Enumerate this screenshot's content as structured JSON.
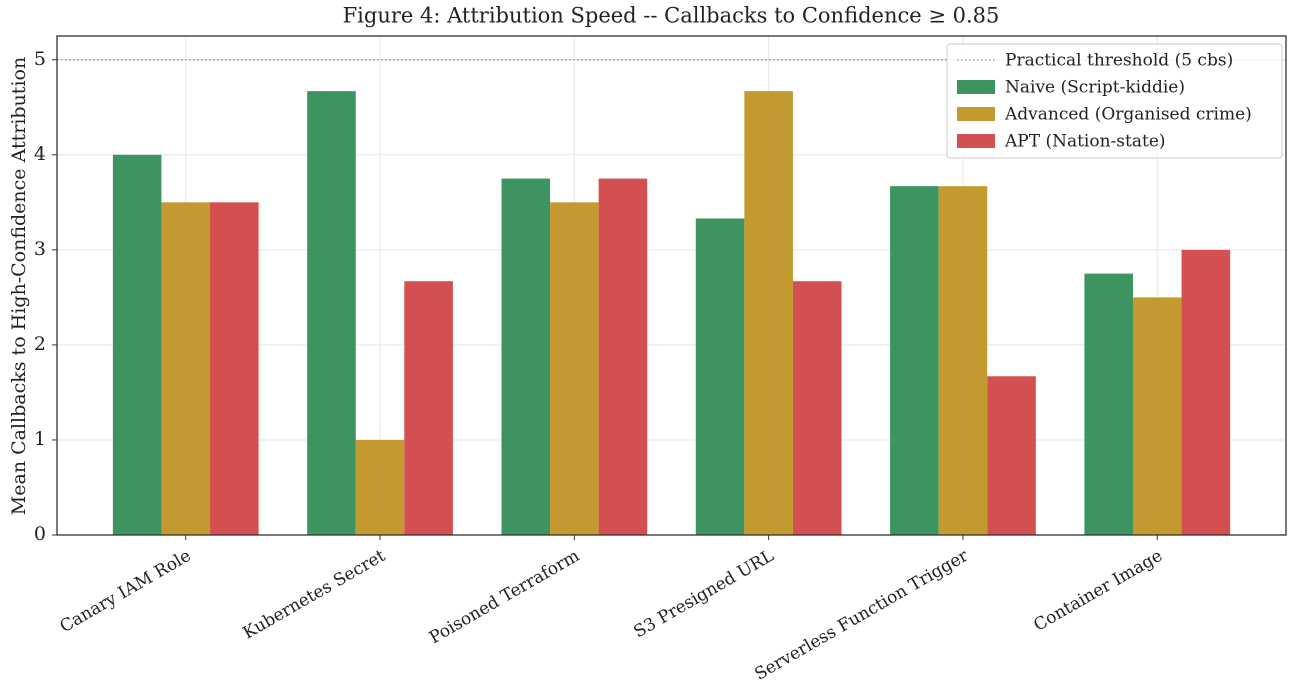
{
  "chart_data": {
    "type": "bar",
    "title": "Figure 4: Attribution Speed -- Callbacks to Confidence ≥ 0.85",
    "ylabel": "Mean Callbacks to High-Confidence Attribution",
    "categories": [
      "Canary IAM Role",
      "Kubernetes Secret",
      "Poisoned Terraform",
      "S3 Presigned URL",
      "Serverless Function Trigger",
      "Container Image"
    ],
    "series": [
      {
        "name": "Naive (Script-kiddie)",
        "color": "#3d9460",
        "values": [
          4.0,
          4.67,
          3.75,
          3.33,
          3.67,
          2.75
        ]
      },
      {
        "name": "Advanced (Organised crime)",
        "color": "#c39a30",
        "values": [
          3.5,
          1.0,
          3.5,
          4.67,
          3.67,
          2.5
        ]
      },
      {
        "name": "APT (Nation-state)",
        "color": "#d45050",
        "values": [
          3.5,
          2.67,
          3.75,
          2.67,
          1.67,
          3.0
        ]
      }
    ],
    "threshold": {
      "value": 5,
      "label": "Practical threshold (5 cbs)",
      "color": "#888888"
    },
    "ylim": [
      0,
      5.25
    ],
    "yticks": [
      0,
      1,
      2,
      3,
      4,
      5
    ],
    "grid": true,
    "legend": "upper right"
  }
}
